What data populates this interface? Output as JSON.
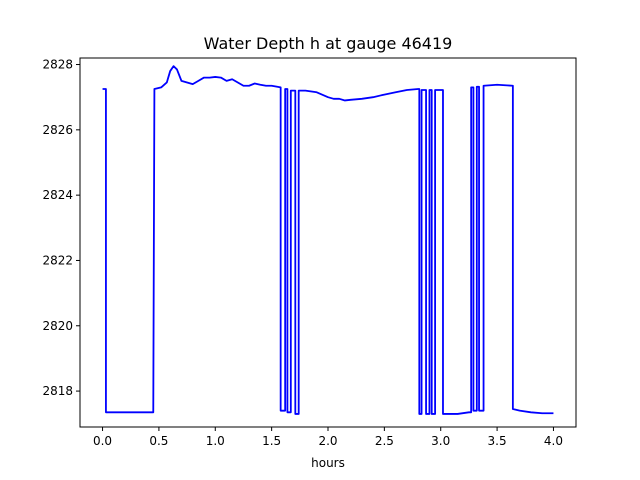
{
  "chart_data": {
    "type": "line",
    "title": "Water Depth h at gauge 46419",
    "xlabel": "hours",
    "ylabel": "",
    "xlim": [
      -0.2,
      4.2
    ],
    "ylim": [
      2816.9,
      2828.2
    ],
    "xticks": [
      0.0,
      0.5,
      1.0,
      1.5,
      2.0,
      2.5,
      3.0,
      3.5,
      4.0
    ],
    "xtick_labels": [
      "0.0",
      "0.5",
      "1.0",
      "1.5",
      "2.0",
      "2.5",
      "3.0",
      "3.5",
      "4.0"
    ],
    "yticks": [
      2818,
      2820,
      2822,
      2824,
      2826,
      2828
    ],
    "ytick_labels": [
      "2818",
      "2820",
      "2822",
      "2824",
      "2826",
      "2828"
    ],
    "grid": false,
    "legend": "none",
    "series": [
      {
        "color": "#0000ff",
        "points": [
          [
            0.0,
            2827.25
          ],
          [
            0.03,
            2827.25
          ],
          [
            0.03,
            2817.35
          ],
          [
            0.45,
            2817.35
          ],
          [
            0.46,
            2827.25
          ],
          [
            0.52,
            2827.3
          ],
          [
            0.57,
            2827.45
          ],
          [
            0.6,
            2827.8
          ],
          [
            0.63,
            2827.95
          ],
          [
            0.66,
            2827.85
          ],
          [
            0.7,
            2827.5
          ],
          [
            0.75,
            2827.45
          ],
          [
            0.8,
            2827.4
          ],
          [
            0.85,
            2827.5
          ],
          [
            0.9,
            2827.6
          ],
          [
            0.95,
            2827.6
          ],
          [
            1.0,
            2827.62
          ],
          [
            1.05,
            2827.6
          ],
          [
            1.1,
            2827.5
          ],
          [
            1.15,
            2827.55
          ],
          [
            1.2,
            2827.45
          ],
          [
            1.25,
            2827.35
          ],
          [
            1.3,
            2827.35
          ],
          [
            1.35,
            2827.42
          ],
          [
            1.4,
            2827.38
          ],
          [
            1.45,
            2827.35
          ],
          [
            1.5,
            2827.35
          ],
          [
            1.55,
            2827.32
          ],
          [
            1.58,
            2827.3
          ],
          [
            1.58,
            2817.4
          ],
          [
            1.62,
            2817.4
          ],
          [
            1.62,
            2827.25
          ],
          [
            1.64,
            2827.25
          ],
          [
            1.64,
            2817.35
          ],
          [
            1.67,
            2817.35
          ],
          [
            1.67,
            2827.2
          ],
          [
            1.71,
            2827.2
          ],
          [
            1.71,
            2817.3
          ],
          [
            1.74,
            2817.3
          ],
          [
            1.74,
            2827.2
          ],
          [
            1.8,
            2827.2
          ],
          [
            1.9,
            2827.15
          ],
          [
            2.0,
            2827.0
          ],
          [
            2.05,
            2826.95
          ],
          [
            2.1,
            2826.95
          ],
          [
            2.15,
            2826.9
          ],
          [
            2.2,
            2826.92
          ],
          [
            2.3,
            2826.95
          ],
          [
            2.4,
            2827.0
          ],
          [
            2.5,
            2827.08
          ],
          [
            2.6,
            2827.15
          ],
          [
            2.7,
            2827.22
          ],
          [
            2.8,
            2827.25
          ],
          [
            2.81,
            2827.25
          ],
          [
            2.81,
            2817.3
          ],
          [
            2.83,
            2817.3
          ],
          [
            2.83,
            2827.22
          ],
          [
            2.87,
            2827.22
          ],
          [
            2.87,
            2817.3
          ],
          [
            2.9,
            2817.3
          ],
          [
            2.9,
            2827.22
          ],
          [
            2.92,
            2827.22
          ],
          [
            2.92,
            2817.3
          ],
          [
            2.95,
            2817.3
          ],
          [
            2.95,
            2827.22
          ],
          [
            3.02,
            2827.22
          ],
          [
            3.02,
            2817.3
          ],
          [
            3.15,
            2817.3
          ],
          [
            3.25,
            2817.35
          ],
          [
            3.27,
            2817.35
          ],
          [
            3.27,
            2827.3
          ],
          [
            3.29,
            2827.3
          ],
          [
            3.29,
            2817.4
          ],
          [
            3.32,
            2817.4
          ],
          [
            3.32,
            2827.32
          ],
          [
            3.34,
            2827.32
          ],
          [
            3.34,
            2817.4
          ],
          [
            3.38,
            2817.4
          ],
          [
            3.38,
            2827.35
          ],
          [
            3.5,
            2827.38
          ],
          [
            3.64,
            2827.35
          ],
          [
            3.64,
            2817.45
          ],
          [
            3.7,
            2817.4
          ],
          [
            3.8,
            2817.35
          ],
          [
            3.9,
            2817.32
          ],
          [
            4.0,
            2817.32
          ]
        ]
      }
    ]
  }
}
